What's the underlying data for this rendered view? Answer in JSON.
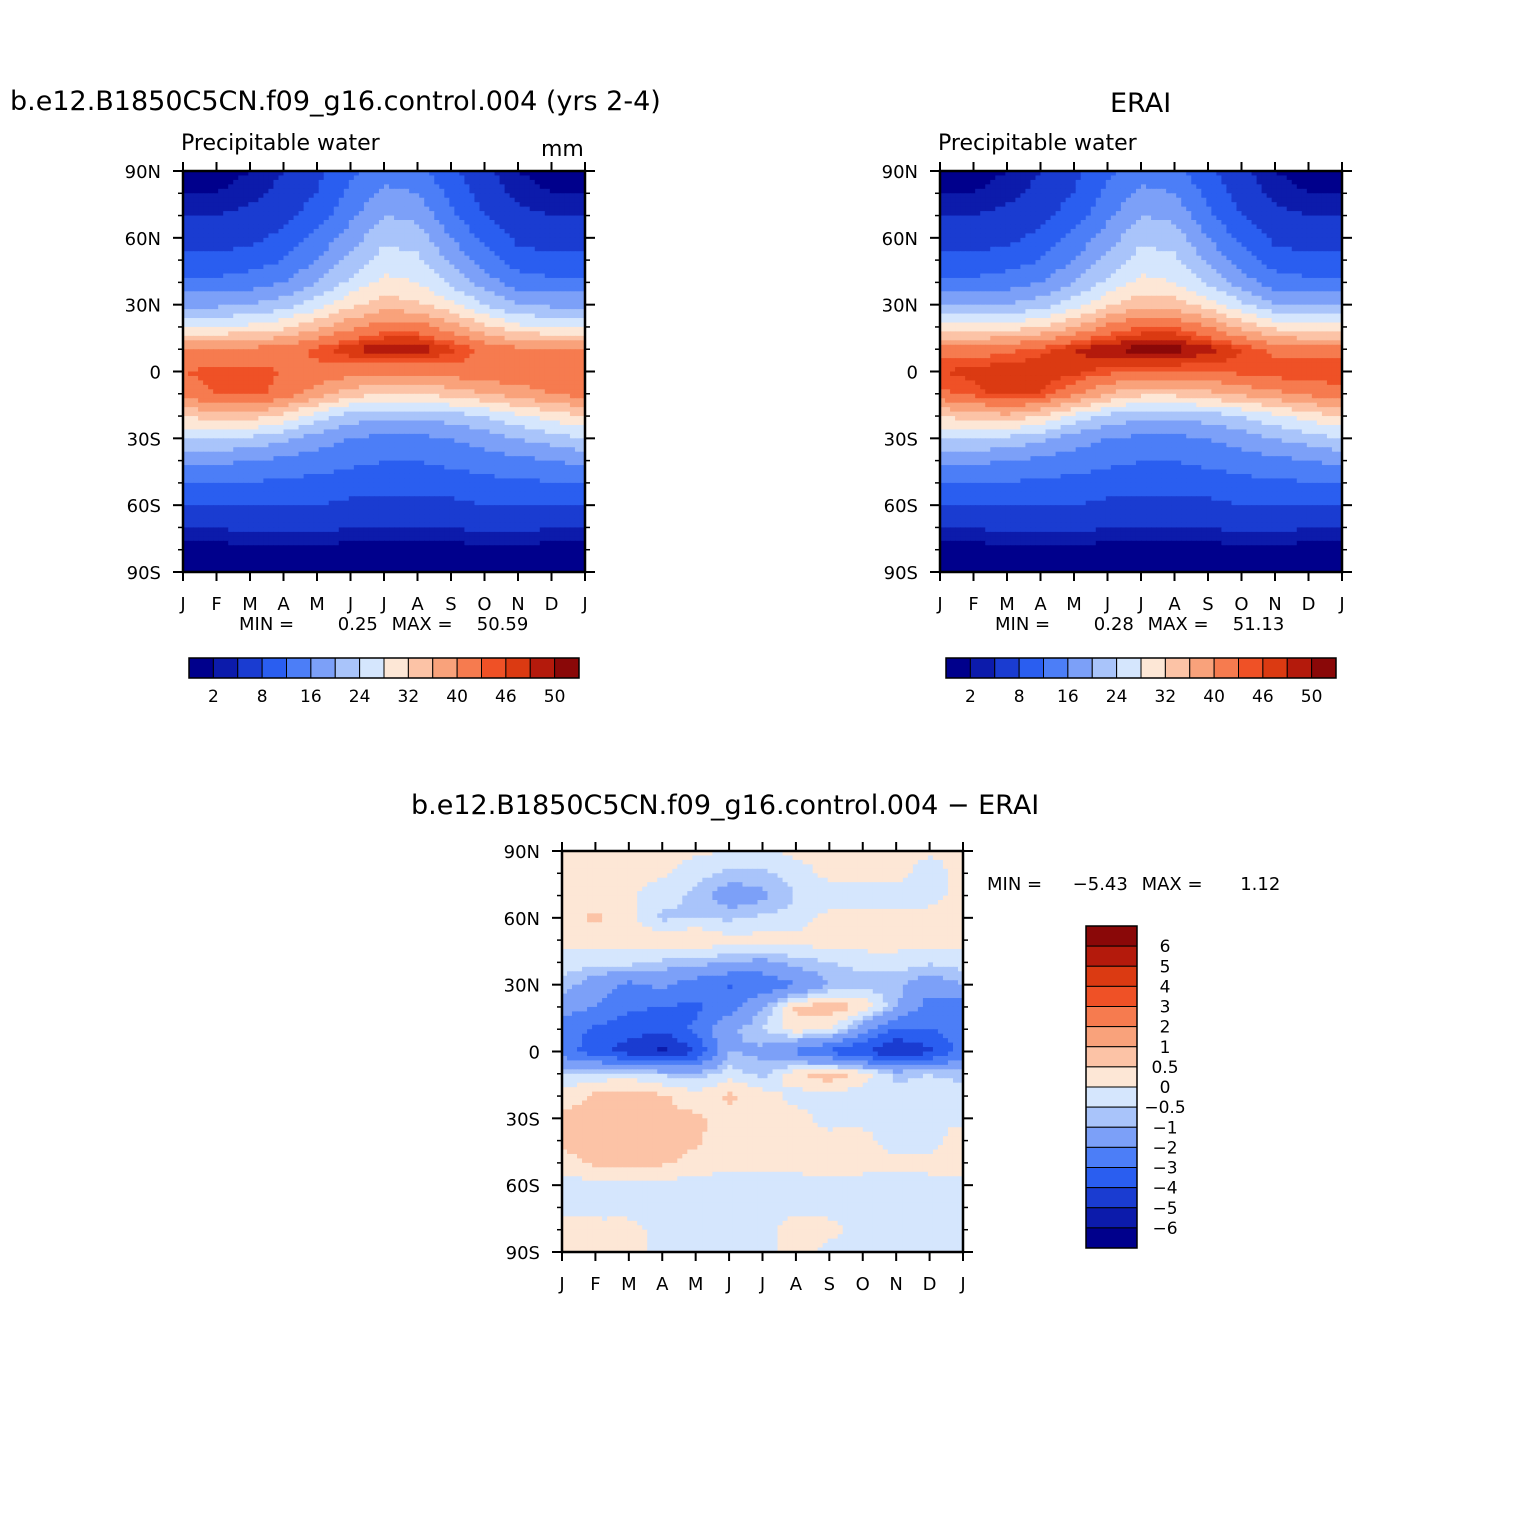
{
  "panels": [
    {
      "title": "b.e12.B1850C5CN.f09_g16.control.004 (yrs 2-4)",
      "left_string": "Precipitable water",
      "right_string": "mm",
      "min_max": {
        "min_label": "MIN =",
        "min": "0.25",
        "max_label": "MAX =",
        "max": "50.59"
      }
    },
    {
      "title": "ERAI",
      "left_string": "Precipitable water",
      "right_string": "",
      "min_max": {
        "min_label": "MIN =",
        "min": "0.28",
        "max_label": "MAX =",
        "max": "51.13"
      }
    },
    {
      "title": "b.e12.B1850C5CN.f09_g16.control.004 − ERAI",
      "left_string": "",
      "right_string": "",
      "min_max": {
        "min_label": "MIN =",
        "min": "−5.43",
        "max_label": "MAX =",
        "max": "1.12"
      }
    }
  ],
  "chart_data": [
    {
      "type": "heatmap",
      "title": "b.e12.B1850C5CN.f09_g16.control.004 (yrs 2-4)",
      "left_string": "Precipitable water",
      "units": "mm",
      "x": [
        "J",
        "F",
        "M",
        "A",
        "M",
        "J",
        "J",
        "A",
        "S",
        "O",
        "N",
        "D",
        "J"
      ],
      "y_ticks": [
        "90N",
        "60N",
        "30N",
        "0",
        "30S",
        "60S",
        "90S"
      ],
      "ylim": [
        -90,
        90
      ],
      "lat_nodes": [
        90,
        80,
        70,
        60,
        50,
        40,
        30,
        20,
        10,
        0,
        -10,
        -20,
        -30,
        -40,
        -50,
        -60,
        -70,
        -80,
        -90
      ],
      "values": [
        [
          1,
          1,
          2,
          4,
          7,
          11,
          14,
          13,
          9,
          5,
          2,
          1,
          1
        ],
        [
          2,
          2,
          3,
          5,
          8,
          13,
          17,
          16,
          11,
          6,
          3,
          2,
          2
        ],
        [
          4,
          4,
          5,
          7,
          10,
          15,
          20,
          19,
          13,
          8,
          5,
          4,
          4
        ],
        [
          6,
          6,
          7,
          9,
          13,
          18,
          23,
          22,
          16,
          11,
          7,
          6,
          6
        ],
        [
          9,
          9,
          10,
          12,
          16,
          21,
          26,
          25,
          19,
          14,
          10,
          9,
          9
        ],
        [
          13,
          13,
          14,
          16,
          20,
          25,
          29,
          28,
          23,
          18,
          14,
          13,
          13
        ],
        [
          19,
          19,
          20,
          22,
          26,
          31,
          34,
          33,
          29,
          24,
          20,
          19,
          19
        ],
        [
          28,
          28,
          29,
          31,
          35,
          39,
          42,
          42,
          38,
          33,
          29,
          28,
          28
        ],
        [
          40,
          40,
          41,
          42,
          45,
          48,
          50,
          50,
          47,
          43,
          41,
          40,
          40
        ],
        [
          44,
          45,
          45,
          44,
          43,
          42,
          41,
          41,
          42,
          43,
          43,
          44,
          44
        ],
        [
          42,
          44,
          45,
          43,
          38,
          34,
          32,
          32,
          34,
          36,
          38,
          40,
          42
        ],
        [
          32,
          34,
          34,
          31,
          26,
          22,
          21,
          21,
          22,
          24,
          27,
          30,
          32
        ],
        [
          24,
          24,
          23,
          21,
          18,
          16,
          15,
          15,
          16,
          18,
          20,
          22,
          24
        ],
        [
          17,
          17,
          16,
          15,
          14,
          13,
          12,
          12,
          13,
          14,
          15,
          16,
          17
        ],
        [
          12,
          12,
          12,
          11,
          11,
          10,
          10,
          10,
          10,
          11,
          11,
          12,
          12
        ],
        [
          8,
          8,
          8,
          8,
          8,
          7,
          7,
          7,
          7,
          8,
          8,
          8,
          8
        ],
        [
          4,
          4,
          5,
          5,
          5,
          4,
          4,
          4,
          4,
          5,
          5,
          4,
          4
        ],
        [
          1,
          1,
          1,
          1,
          1,
          1,
          1,
          1,
          1,
          1,
          1,
          1,
          1
        ],
        [
          0.5,
          0.5,
          0.5,
          0.5,
          0.5,
          0.5,
          0.5,
          0.5,
          0.5,
          0.5,
          0.5,
          0.5,
          0.5
        ]
      ],
      "min": 0.25,
      "max": 50.59,
      "levels": [
        2,
        4,
        8,
        12,
        16,
        20,
        24,
        28,
        32,
        36,
        40,
        44,
        46,
        48,
        50
      ],
      "colorbar_labels": [
        "2",
        "8",
        "16",
        "24",
        "32",
        "40",
        "46",
        "50"
      ],
      "colorbar_label_levels": [
        2,
        8,
        16,
        24,
        32,
        40,
        46,
        50
      ]
    },
    {
      "type": "heatmap",
      "title": "ERAI",
      "left_string": "Precipitable water",
      "x": [
        "J",
        "F",
        "M",
        "A",
        "M",
        "J",
        "J",
        "A",
        "S",
        "O",
        "N",
        "D",
        "J"
      ],
      "y_ticks": [
        "90N",
        "60N",
        "30N",
        "0",
        "30S",
        "60S",
        "90S"
      ],
      "ylim": [
        -90,
        90
      ],
      "lat_nodes": [
        90,
        80,
        70,
        60,
        50,
        40,
        30,
        20,
        10,
        0,
        -10,
        -20,
        -30,
        -40,
        -50,
        -60,
        -70,
        -80,
        -90
      ],
      "values": [
        [
          1,
          1,
          2,
          4,
          7,
          11,
          14,
          13,
          9,
          5,
          2,
          1,
          1
        ],
        [
          2,
          2,
          3,
          5,
          8,
          13,
          17,
          16,
          11,
          6,
          3,
          2,
          2
        ],
        [
          4,
          4,
          5,
          7,
          10,
          15,
          20,
          19,
          13,
          8,
          5,
          4,
          4
        ],
        [
          6,
          6,
          7,
          9,
          13,
          18,
          23,
          22,
          16,
          11,
          7,
          6,
          6
        ],
        [
          9,
          9,
          10,
          12,
          16,
          21,
          26,
          25,
          19,
          14,
          10,
          9,
          9
        ],
        [
          13,
          13,
          14,
          16,
          20,
          25,
          29,
          28,
          23,
          18,
          14,
          13,
          13
        ],
        [
          19,
          19,
          20,
          22,
          26,
          31,
          35,
          34,
          30,
          25,
          20,
          19,
          19
        ],
        [
          29,
          29,
          30,
          32,
          36,
          41,
          44,
          44,
          40,
          35,
          31,
          29,
          29
        ],
        [
          42,
          42,
          43,
          45,
          48,
          50,
          51,
          51,
          49,
          46,
          43,
          42,
          42
        ],
        [
          46,
          47,
          48,
          48,
          47,
          45,
          44,
          44,
          44,
          45,
          46,
          46,
          46
        ],
        [
          43,
          45,
          47,
          46,
          41,
          36,
          33,
          33,
          35,
          37,
          39,
          41,
          43
        ],
        [
          32,
          34,
          35,
          32,
          27,
          23,
          21,
          21,
          22,
          24,
          27,
          30,
          32
        ],
        [
          24,
          24,
          23,
          21,
          18,
          16,
          15,
          15,
          16,
          18,
          20,
          22,
          24
        ],
        [
          17,
          17,
          16,
          15,
          14,
          13,
          12,
          12,
          13,
          14,
          15,
          16,
          17
        ],
        [
          12,
          12,
          12,
          11,
          11,
          10,
          10,
          10,
          10,
          11,
          11,
          12,
          12
        ],
        [
          8,
          8,
          8,
          8,
          8,
          7,
          7,
          7,
          7,
          8,
          8,
          8,
          8
        ],
        [
          4,
          4,
          5,
          5,
          5,
          4,
          4,
          4,
          4,
          5,
          5,
          4,
          4
        ],
        [
          1,
          1,
          1,
          1,
          1,
          1,
          1,
          1,
          1,
          1,
          1,
          1,
          1
        ],
        [
          0.5,
          0.5,
          0.5,
          0.5,
          0.5,
          0.5,
          0.5,
          0.5,
          0.5,
          0.5,
          0.5,
          0.5,
          0.5
        ]
      ],
      "min": 0.28,
      "max": 51.13,
      "levels": [
        2,
        4,
        8,
        12,
        16,
        20,
        24,
        28,
        32,
        36,
        40,
        44,
        46,
        48,
        50
      ],
      "colorbar_labels": [
        "2",
        "8",
        "16",
        "24",
        "32",
        "40",
        "46",
        "50"
      ],
      "colorbar_label_levels": [
        2,
        8,
        16,
        24,
        32,
        40,
        46,
        50
      ]
    },
    {
      "type": "heatmap",
      "title": "b.e12.B1850C5CN.f09_g16.control.004 − ERAI",
      "x": [
        "J",
        "F",
        "M",
        "A",
        "M",
        "J",
        "J",
        "A",
        "S",
        "O",
        "N",
        "D",
        "J"
      ],
      "y_ticks": [
        "90N",
        "60N",
        "30N",
        "0",
        "30S",
        "60S",
        "90S"
      ],
      "ylim": [
        -90,
        90
      ],
      "lat_nodes": [
        90,
        80,
        70,
        60,
        50,
        40,
        30,
        20,
        10,
        0,
        -10,
        -20,
        -30,
        -40,
        -50,
        -60,
        -70,
        -80,
        -90
      ],
      "values": [
        [
          0.3,
          0.3,
          0.2,
          0.2,
          0.1,
          0.0,
          -0.2,
          0.2,
          0.2,
          0.2,
          0.2,
          0.1,
          0.2
        ],
        [
          0.2,
          0.3,
          0.2,
          0.1,
          -0.3,
          -0.6,
          -0.6,
          -0.3,
          0.2,
          0.2,
          0.2,
          -0.3,
          0.2
        ],
        [
          0.2,
          0.2,
          0.1,
          -0.3,
          -0.6,
          -1.5,
          -1.2,
          -0.5,
          -0.3,
          -0.2,
          -0.3,
          -0.2,
          0.2
        ],
        [
          0.3,
          0.6,
          0.2,
          -0.6,
          -0.5,
          -0.6,
          -0.4,
          -0.3,
          0.2,
          0.2,
          0.2,
          0.2,
          0.2
        ],
        [
          0.2,
          0.2,
          0.3,
          0.3,
          0.6,
          0.2,
          0.2,
          0.2,
          0.3,
          0.3,
          0.2,
          0.2,
          0.2
        ],
        [
          -0.2,
          -0.3,
          -0.3,
          -0.6,
          -0.7,
          -1.0,
          -1.2,
          -0.7,
          -0.5,
          -0.3,
          -0.2,
          -0.4,
          -0.2
        ],
        [
          -0.6,
          -1.5,
          -2.2,
          -1.8,
          -2.5,
          -3.1,
          -2.8,
          -2.0,
          -1.0,
          -0.7,
          -0.9,
          -1.5,
          -1.0
        ],
        [
          -1.5,
          -2.0,
          -2.8,
          -3.0,
          -3.2,
          -2.5,
          -1.0,
          0.6,
          0.8,
          0.5,
          -0.8,
          -2.5,
          -2.5
        ],
        [
          -2.5,
          -3.2,
          -3.6,
          -3.8,
          -2.8,
          -1.2,
          -0.5,
          0.3,
          0.2,
          -1.5,
          -3.2,
          -3.0,
          -2.5
        ],
        [
          -2.5,
          -3.5,
          -4.5,
          -5.3,
          -4.0,
          -1.0,
          -1.2,
          -2.2,
          -3.2,
          -4.0,
          -5.0,
          -4.2,
          -2.6
        ],
        [
          -0.5,
          -0.3,
          -0.2,
          -0.6,
          -0.8,
          -0.2,
          -0.7,
          0.4,
          0.9,
          0.3,
          -0.6,
          -0.5,
          -0.7
        ],
        [
          0.2,
          0.6,
          0.7,
          0.6,
          0.2,
          0.6,
          0.3,
          -0.2,
          -0.2,
          -0.3,
          -0.4,
          -0.2,
          -0.2
        ],
        [
          0.7,
          0.7,
          0.7,
          0.6,
          0.6,
          0.3,
          0.2,
          0.2,
          -0.2,
          -0.2,
          -0.2,
          -0.2,
          -0.2
        ],
        [
          0.6,
          0.8,
          0.8,
          0.7,
          0.6,
          0.2,
          0.2,
          0.2,
          0.2,
          0.2,
          -0.3,
          -0.3,
          0.5
        ],
        [
          0.3,
          0.6,
          0.6,
          0.6,
          0.3,
          0.2,
          0.2,
          0.2,
          0.2,
          0.2,
          0.2,
          0.2,
          0.3
        ],
        [
          -0.2,
          -0.2,
          -0.2,
          -0.2,
          -0.2,
          -0.3,
          -0.3,
          -0.2,
          -0.2,
          -0.2,
          -0.3,
          -0.2,
          -0.2
        ],
        [
          -0.2,
          -0.2,
          -0.2,
          -0.2,
          -0.2,
          -0.2,
          -0.2,
          -0.2,
          -0.2,
          -0.2,
          -0.2,
          -0.2,
          -0.2
        ],
        [
          0.3,
          0.2,
          0.2,
          -0.2,
          -0.2,
          -0.2,
          -0.2,
          0.3,
          0.2,
          -0.2,
          -0.2,
          -0.2,
          -0.2
        ],
        [
          0.2,
          0.2,
          0.2,
          -0.2,
          -0.2,
          -0.2,
          -0.2,
          0.3,
          -0.2,
          -0.2,
          -0.2,
          -0.2,
          -0.2
        ]
      ],
      "min": -5.43,
      "max": 1.12,
      "levels": [
        -6,
        -5,
        -4,
        -3,
        -2,
        -1,
        -0.5,
        0,
        0.5,
        1,
        2,
        3,
        4,
        5,
        6
      ],
      "colorbar_labels": [
        "6",
        "5",
        "4",
        "3",
        "2",
        "1",
        "0.5",
        "0",
        "−0.5",
        "−1",
        "−2",
        "−3",
        "−4",
        "−5",
        "−6"
      ]
    }
  ],
  "colors": {
    "fill_palette": [
      "#00008c",
      "#0c1bab",
      "#1a3cd1",
      "#2a5ef0",
      "#4c7ef7",
      "#7ca0f8",
      "#a9c4fa",
      "#d5e6fd",
      "#fde7d6",
      "#fcc3a6",
      "#f9a27b",
      "#f67b4f",
      "#ef5126",
      "#db3a12",
      "#b41a0c",
      "#8a0808"
    ],
    "axis": "#000000"
  }
}
